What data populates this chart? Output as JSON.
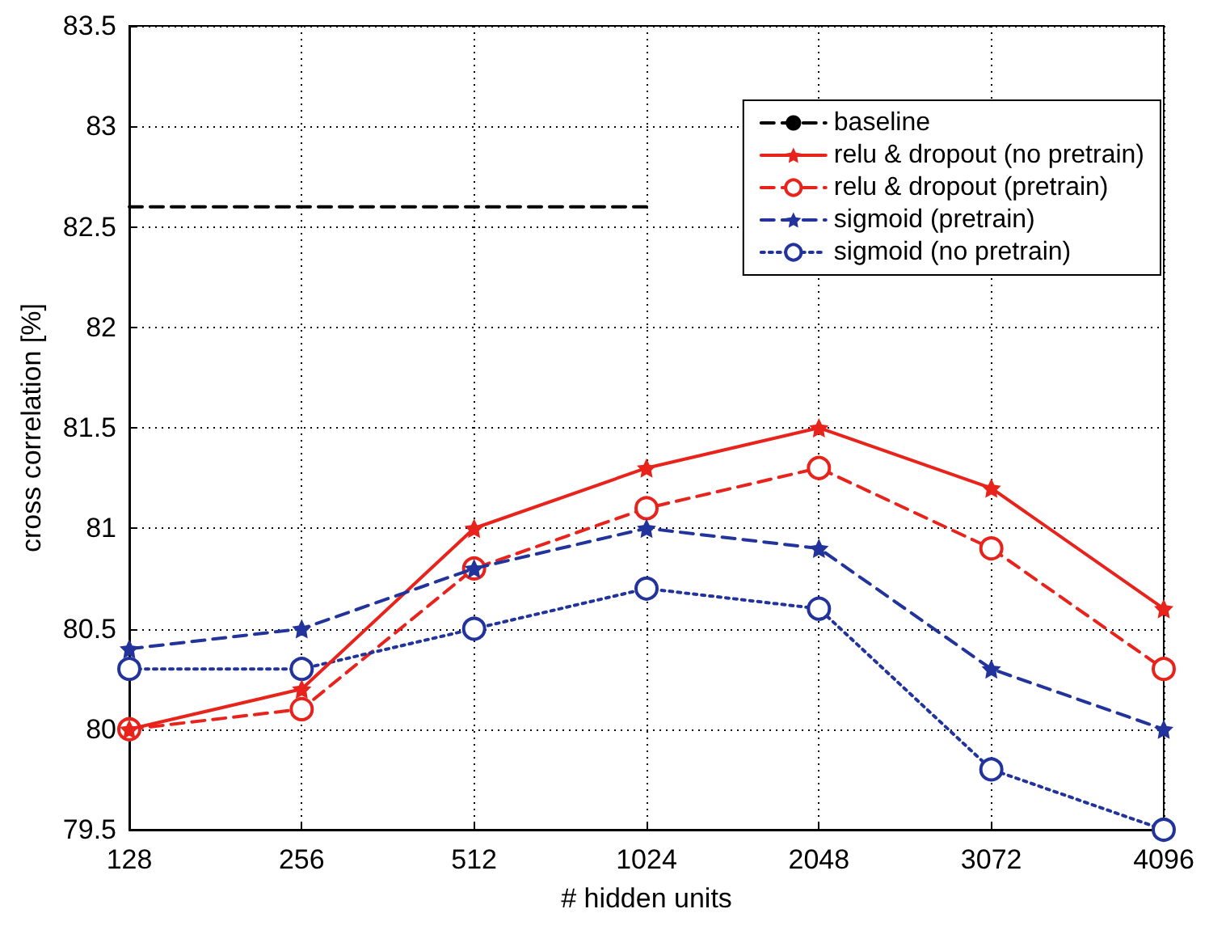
{
  "chart_data": {
    "type": "line",
    "xlabel": "# hidden units",
    "ylabel": "cross correlation [%]",
    "categories": [
      "128",
      "256",
      "512",
      "1024",
      "2048",
      "3072",
      "4096"
    ],
    "ylim": [
      79.5,
      83.5
    ],
    "yticks": [
      79.5,
      80,
      80.5,
      81,
      81.5,
      82,
      82.5,
      83,
      83.5
    ],
    "grid": true,
    "legend": "top right",
    "series": [
      {
        "name": "baseline",
        "color": "#000000",
        "line_style": "dashed",
        "marker": "none",
        "values": [
          82.6,
          82.6,
          82.6,
          82.6,
          null,
          null,
          null
        ]
      },
      {
        "name": "relu & dropout (no pretrain)",
        "color": "#e8231c",
        "line_style": "solid",
        "marker": "star",
        "values": [
          80.0,
          80.2,
          81.0,
          81.3,
          81.5,
          81.2,
          80.6
        ]
      },
      {
        "name": "relu & dropout (pretrain)",
        "color": "#e8231c",
        "line_style": "dashed",
        "marker": "circle",
        "values": [
          80.0,
          80.1,
          80.8,
          81.1,
          81.3,
          80.9,
          80.3
        ]
      },
      {
        "name": "sigmoid (pretrain)",
        "color": "#22349c",
        "line_style": "dashed",
        "marker": "star",
        "values": [
          80.4,
          80.5,
          80.8,
          81.0,
          80.9,
          80.3,
          80.0
        ]
      },
      {
        "name": "sigmoid (no pretrain)",
        "color": "#22349c",
        "line_style": "dotted",
        "marker": "circle",
        "values": [
          80.3,
          80.3,
          80.5,
          80.7,
          80.6,
          79.8,
          79.5
        ]
      }
    ]
  }
}
